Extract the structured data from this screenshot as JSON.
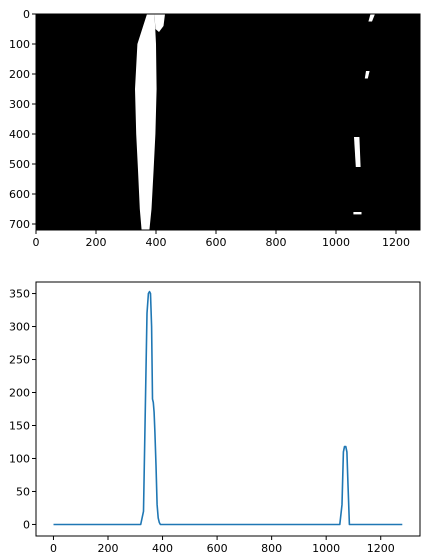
{
  "figure": {
    "top_panel": {
      "description_type": "binary image"
    }
  },
  "chart_data": [
    {
      "type": "heatmap",
      "title": "",
      "xlabel": "",
      "ylabel": "",
      "xlim": [
        0,
        1280
      ],
      "ylim": [
        720,
        0
      ],
      "xticks": [
        0,
        200,
        400,
        600,
        800,
        1000,
        1200
      ],
      "yticks": [
        0,
        100,
        200,
        300,
        400,
        500,
        600,
        700
      ],
      "background_color": "#000000",
      "foreground_color": "#ffffff",
      "regions": [
        {
          "name": "left-lane-strip",
          "points": [
            [
              370,
              0
            ],
            [
              395,
              0
            ],
            [
              400,
              100
            ],
            [
              402,
              250
            ],
            [
              398,
              400
            ],
            [
              392,
              520
            ],
            [
              385,
              650
            ],
            [
              378,
              720
            ],
            [
              352,
              720
            ],
            [
              346,
              650
            ],
            [
              340,
              520
            ],
            [
              334,
              400
            ],
            [
              330,
              250
            ],
            [
              338,
              100
            ]
          ]
        },
        {
          "name": "left-lane-upper-patch",
          "points": [
            [
              395,
              0
            ],
            [
              430,
              0
            ],
            [
              425,
              40
            ],
            [
              410,
              60
            ],
            [
              398,
              50
            ]
          ]
        },
        {
          "name": "right-lane-top",
          "points": [
            [
              1115,
              0
            ],
            [
              1130,
              0
            ],
            [
              1120,
              25
            ],
            [
              1108,
              25
            ]
          ]
        },
        {
          "name": "right-lane-mark-200",
          "points": [
            [
              1100,
              190
            ],
            [
              1112,
              190
            ],
            [
              1106,
              215
            ],
            [
              1096,
              215
            ]
          ]
        },
        {
          "name": "right-lane-mid",
          "points": [
            [
              1060,
              410
            ],
            [
              1078,
              410
            ],
            [
              1082,
              510
            ],
            [
              1066,
              510
            ]
          ]
        },
        {
          "name": "right-lane-bottom",
          "points": [
            [
              1058,
              660
            ],
            [
              1085,
              660
            ],
            [
              1085,
              668
            ],
            [
              1058,
              668
            ]
          ]
        }
      ]
    },
    {
      "type": "line",
      "title": "",
      "xlabel": "",
      "ylabel": "",
      "xlim": [
        -64,
        1344
      ],
      "ylim": [
        -17.5,
        367.5
      ],
      "xticks": [
        0,
        200,
        400,
        600,
        800,
        1000,
        1200
      ],
      "yticks": [
        0,
        50,
        100,
        150,
        200,
        250,
        300,
        350
      ],
      "series": [
        {
          "color": "#1f77b4",
          "x": [
            0,
            320,
            330,
            338,
            343,
            348,
            352,
            356,
            360,
            363,
            366,
            369,
            372,
            376,
            380,
            384,
            388,
            392,
            398,
            420,
            1050,
            1058,
            1063,
            1067,
            1072,
            1076,
            1080,
            1085,
            1092,
            1279
          ],
          "y": [
            0,
            0,
            20,
            200,
            320,
            350,
            353,
            350,
            300,
            190,
            185,
            170,
            140,
            90,
            30,
            10,
            3,
            0,
            0,
            0,
            0,
            30,
            110,
            118,
            118,
            110,
            60,
            0,
            0,
            0
          ]
        }
      ]
    }
  ]
}
